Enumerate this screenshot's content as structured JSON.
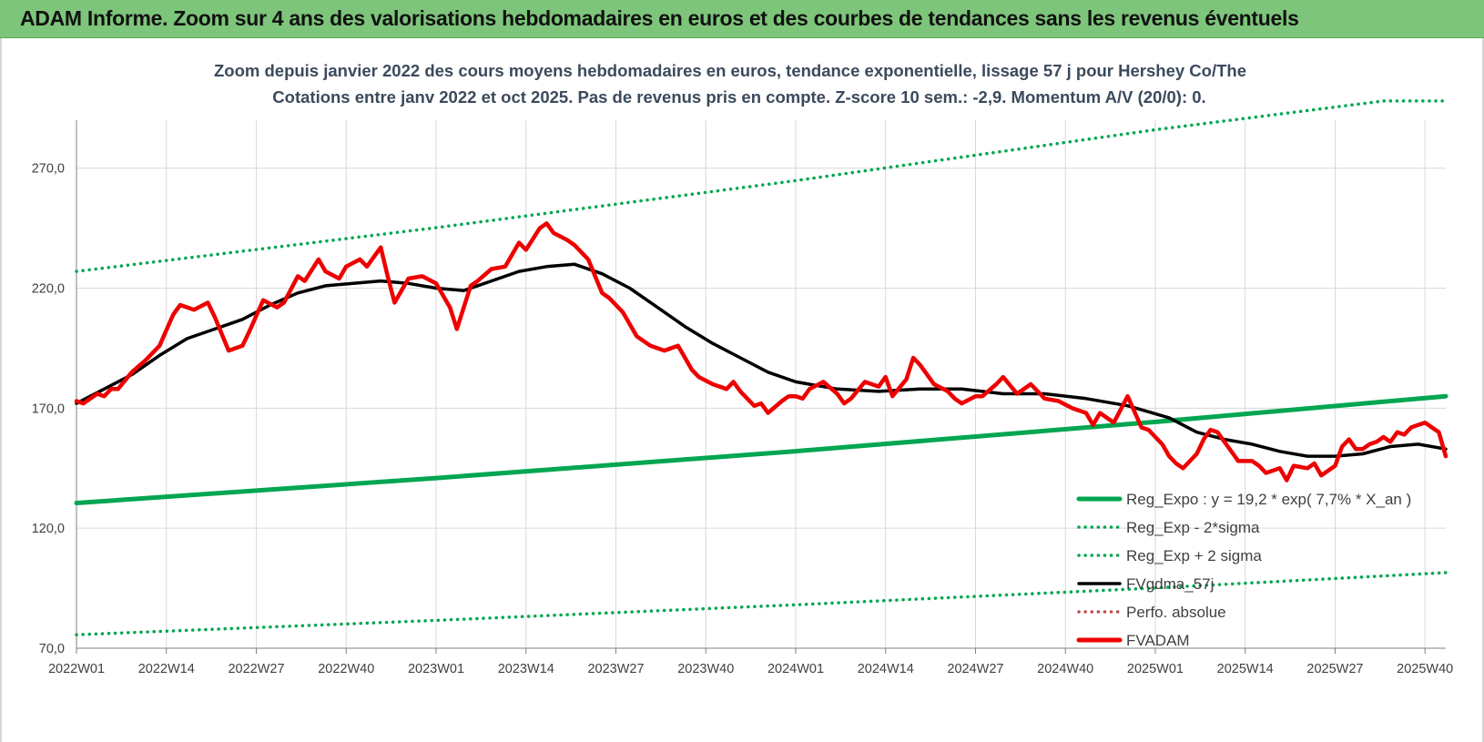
{
  "banner": {
    "title": "ADAM Informe. Zoom sur 4 ans des valorisations hebdomadaires en euros et des courbes de tendances sans les revenus éventuels"
  },
  "colors": {
    "banner": "#7dc57a",
    "reg_expo": "#00a650",
    "fvgdma": "#000000",
    "fvadam": "#ee0000",
    "perfo": "#c0504d",
    "title_text": "#3b4a5c",
    "grid": "#d9d9d9"
  },
  "chart_data": {
    "type": "line",
    "title_line1": "Zoom depuis janvier 2022 des cours moyens hebdomadaires en euros, tendance exponentielle, lissage 57 j pour Hershey Co/The",
    "title_line2": "Cotations entre janv 2022 et oct 2025. Pas de revenus pris en compte. Z-score 10 sem.: -2,9. Momentum A/V (20/0): 0.",
    "ylim": [
      70,
      290
    ],
    "yticks": [
      70,
      120,
      170,
      220,
      270
    ],
    "ytick_labels": [
      "70,0",
      "120,0",
      "170,0",
      "220,0",
      "270,0"
    ],
    "xlim": [
      0,
      198
    ],
    "xticks": [
      0,
      13,
      26,
      39,
      52,
      65,
      78,
      91,
      104,
      117,
      130,
      143,
      156,
      169,
      182,
      195
    ],
    "xtick_labels": [
      "2022W01",
      "2022W14",
      "2022W27",
      "2022W40",
      "2023W01",
      "2023W14",
      "2023W27",
      "2023W40",
      "2024W01",
      "2024W14",
      "2024W27",
      "2024W40",
      "2025W01",
      "2025W14",
      "2025W27",
      "2025W40"
    ],
    "legend": [
      {
        "name": "Reg_Expo : y = 19,2 * exp( 7,7% * X_an )",
        "style": "solid",
        "color": "#00a650"
      },
      {
        "name": "Reg_Exp - 2*sigma",
        "style": "dotted",
        "color": "#00a650"
      },
      {
        "name": "Reg_Exp + 2 sigma",
        "style": "dotted",
        "color": "#00a650"
      },
      {
        "name": "FVgdma_57j",
        "style": "solid",
        "color": "#000000"
      },
      {
        "name": "Perfo. absolue",
        "style": "dotted",
        "color": "#c0504d"
      },
      {
        "name": "FVADAM",
        "style": "solid",
        "color": "#ee0000"
      }
    ],
    "series": [
      {
        "name": "Reg_Expo : y = 19,2 * exp( 7,7% * X_an )",
        "x": [
          0,
          52,
          104,
          156,
          198
        ],
        "values": [
          130.5,
          140.9,
          152.1,
          164.3,
          175.0
        ]
      },
      {
        "name": "Reg_Exp - 2*sigma",
        "x": [
          0,
          52,
          104,
          156,
          198
        ],
        "values": [
          75.6,
          81.6,
          88.1,
          95.1,
          101.5
        ]
      },
      {
        "name": "Reg_Exp + 2 sigma",
        "x": [
          0,
          52,
          104,
          156,
          189,
          198
        ],
        "values": [
          227,
          245.2,
          264.8,
          286,
          298,
          298
        ]
      },
      {
        "name": "FVgdma_57j",
        "x": [
          0,
          4,
          8,
          12,
          16,
          20,
          24,
          28,
          32,
          36,
          40,
          44,
          48,
          52,
          56,
          60,
          64,
          68,
          72,
          76,
          80,
          84,
          88,
          92,
          96,
          100,
          104,
          110,
          116,
          122,
          128,
          134,
          140,
          146,
          152,
          158,
          162,
          166,
          170,
          174,
          178,
          182,
          186,
          190,
          194,
          198
        ],
        "values": [
          172,
          178,
          184,
          192,
          199,
          203,
          207,
          213,
          218,
          221,
          222,
          223,
          222,
          220,
          219,
          223,
          227,
          229,
          230,
          226,
          220,
          212,
          204,
          197,
          191,
          185,
          181,
          178,
          177,
          178,
          178,
          176,
          176,
          174,
          171,
          166,
          160,
          157,
          155,
          152,
          150,
          150,
          151,
          154,
          155,
          153
        ]
      },
      {
        "name": "FVADAM",
        "x": [
          0,
          1,
          2,
          3,
          4,
          5,
          6,
          8,
          10,
          12,
          14,
          15,
          17,
          19,
          20,
          22,
          24,
          25,
          27,
          29,
          30,
          32,
          33,
          35,
          36,
          38,
          39,
          41,
          42,
          44,
          45,
          46,
          48,
          50,
          52,
          54,
          55,
          57,
          58,
          60,
          62,
          64,
          65,
          67,
          68,
          69,
          71,
          72,
          74,
          76,
          77,
          79,
          81,
          83,
          85,
          87,
          89,
          90,
          92,
          94,
          95,
          96,
          98,
          99,
          100,
          102,
          103,
          104,
          105,
          106,
          108,
          110,
          111,
          112,
          114,
          116,
          117,
          118,
          120,
          121,
          122,
          124,
          126,
          127,
          128,
          130,
          131,
          133,
          134,
          136,
          138,
          140,
          142,
          144,
          146,
          147,
          148,
          150,
          152,
          154,
          155,
          156,
          157,
          158,
          159,
          160,
          162,
          163,
          164,
          165,
          166,
          167,
          168,
          170,
          171,
          172,
          174,
          175,
          176,
          178,
          179,
          180,
          182,
          183,
          184,
          185,
          186,
          187,
          188,
          189,
          190,
          191,
          192,
          193,
          194,
          195,
          196,
          197,
          198
        ],
        "values": [
          173,
          172,
          174,
          176,
          175,
          178,
          178,
          185,
          190,
          196,
          209,
          213,
          211,
          214,
          208,
          194,
          196,
          202,
          215,
          212,
          214,
          225,
          223,
          232,
          227,
          224,
          229,
          232,
          229,
          237,
          225,
          214,
          224,
          225,
          222,
          212,
          203,
          221,
          223,
          228,
          229,
          239,
          236,
          245,
          247,
          243,
          240,
          238,
          232,
          218,
          216,
          210,
          200,
          196,
          194,
          196,
          186,
          183,
          180,
          178,
          181,
          177,
          171,
          172,
          168,
          173,
          175,
          175,
          174,
          178,
          181,
          176,
          172,
          174,
          181,
          179,
          183,
          175,
          182,
          191,
          188,
          180,
          177,
          174,
          172,
          175,
          175,
          180,
          183,
          176,
          180,
          174,
          173,
          170,
          168,
          163,
          168,
          164,
          175,
          162,
          161,
          158,
          155,
          150,
          147,
          145,
          151,
          157,
          161,
          160,
          156,
          152,
          148,
          148,
          146,
          143,
          145,
          140,
          146,
          145,
          147,
          142,
          146,
          154,
          157,
          153,
          153,
          155,
          156,
          158,
          156,
          160,
          159,
          162,
          163,
          164,
          162,
          160,
          150
        ]
      }
    ]
  }
}
